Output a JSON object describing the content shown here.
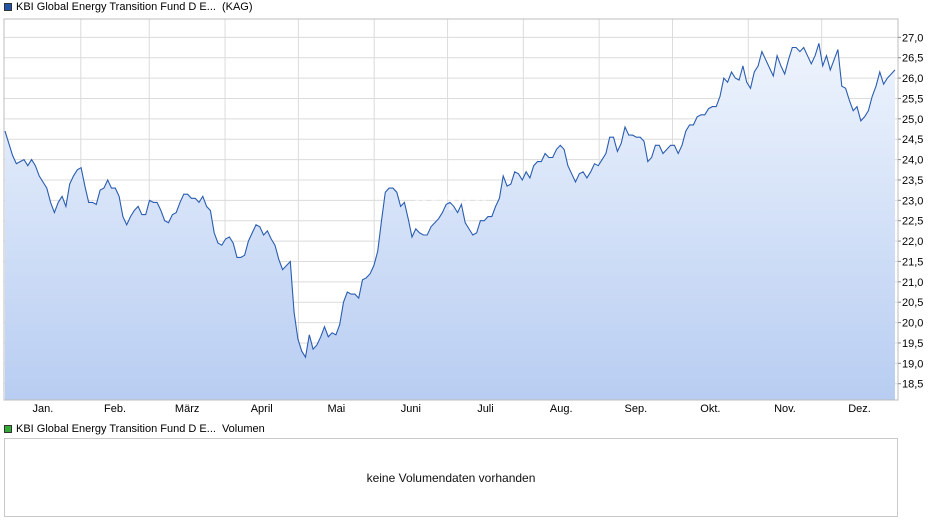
{
  "chart_data": {
    "type": "area",
    "x_tick_labels": [
      "Jan.",
      "Feb.",
      "März",
      "April",
      "Mai",
      "Juni",
      "Juli",
      "Aug.",
      "Sep.",
      "Okt.",
      "Nov.",
      "Dez."
    ],
    "y_tick_labels": [
      "18,5",
      "19,0",
      "19,5",
      "20,0",
      "20,5",
      "21,0",
      "21,5",
      "22,0",
      "22,5",
      "23,0",
      "23,5",
      "24,0",
      "24,5",
      "25,0",
      "25,5",
      "26,0",
      "26,5",
      "27,0"
    ],
    "ylim": [
      18.1,
      27.45
    ],
    "grid": true,
    "series": [
      {
        "name": "KBI Global Energy Transition Fund D E...",
        "values": [
          24.7,
          24.4,
          24.1,
          23.9,
          23.95,
          24.0,
          23.85,
          24.0,
          23.85,
          23.6,
          23.45,
          23.3,
          22.95,
          22.7,
          22.95,
          23.1,
          22.85,
          23.4,
          23.6,
          23.75,
          23.8,
          23.35,
          22.95,
          22.95,
          22.9,
          23.25,
          23.3,
          23.5,
          23.3,
          23.3,
          23.1,
          22.6,
          22.4,
          22.6,
          22.75,
          22.85,
          22.65,
          22.65,
          23.0,
          22.95,
          22.95,
          22.75,
          22.5,
          22.45,
          22.65,
          22.7,
          22.95,
          23.15,
          23.15,
          23.05,
          23.05,
          22.95,
          23.1,
          22.85,
          22.75,
          22.2,
          21.95,
          21.9,
          22.05,
          22.1,
          21.95,
          21.6,
          21.6,
          21.65,
          22.0,
          22.2,
          22.4,
          22.35,
          22.15,
          22.25,
          22.05,
          21.9,
          21.55,
          21.3,
          21.4,
          21.5,
          20.25,
          19.6,
          19.3,
          19.15,
          19.7,
          19.35,
          19.45,
          19.65,
          19.9,
          19.65,
          19.75,
          19.7,
          19.95,
          20.5,
          20.75,
          20.7,
          20.7,
          20.6,
          21.05,
          21.1,
          21.2,
          21.4,
          21.75,
          22.5,
          23.2,
          23.3,
          23.3,
          23.2,
          22.85,
          22.95,
          22.55,
          22.1,
          22.3,
          22.2,
          22.15,
          22.15,
          22.35,
          22.45,
          22.55,
          22.7,
          22.9,
          22.95,
          22.85,
          22.7,
          22.9,
          22.45,
          22.3,
          22.15,
          22.2,
          22.5,
          22.5,
          22.6,
          22.6,
          22.85,
          23.05,
          23.6,
          23.35,
          23.4,
          23.7,
          23.65,
          23.5,
          23.7,
          23.55,
          23.85,
          23.95,
          23.95,
          24.15,
          24.05,
          24.05,
          24.25,
          24.35,
          24.25,
          23.85,
          23.65,
          23.45,
          23.65,
          23.7,
          23.55,
          23.7,
          23.9,
          23.85,
          24.0,
          24.15,
          24.55,
          24.55,
          24.2,
          24.4,
          24.8,
          24.6,
          24.6,
          24.55,
          24.55,
          24.45,
          23.95,
          24.05,
          24.35,
          24.35,
          24.15,
          24.25,
          24.35,
          24.35,
          24.15,
          24.35,
          24.7,
          24.85,
          24.85,
          25.05,
          25.1,
          25.1,
          25.25,
          25.3,
          25.3,
          25.55,
          26.0,
          25.9,
          26.15,
          26.0,
          25.95,
          26.3,
          25.9,
          25.75,
          26.15,
          26.3,
          26.65,
          26.45,
          26.25,
          26.05,
          26.55,
          26.3,
          26.1,
          26.45,
          26.75,
          26.75,
          26.65,
          26.75,
          26.55,
          26.35,
          26.55,
          26.85,
          26.3,
          26.55,
          26.2,
          26.45,
          26.7,
          25.8,
          25.75,
          25.45,
          25.2,
          25.3,
          24.95,
          25.05,
          25.2,
          25.55,
          25.8,
          26.15,
          25.85,
          26.0,
          26.1,
          26.2
        ]
      }
    ]
  },
  "legends": {
    "price": {
      "name": "KBI Global Energy Transition Fund D E...",
      "suffix": "(KAG)",
      "color": "#2255aa"
    },
    "volume": {
      "name": "KBI Global Energy Transition Fund D E...",
      "suffix": "Volumen",
      "color": "#33aa33"
    }
  },
  "volume_message": "keine Volumendaten vorhanden",
  "watermark_text": "ARIVA",
  "colors": {
    "line": "#2a5db0",
    "area_top": "#eef4fd",
    "area_bottom": "#b8cdf2",
    "grid": "#dcdcdc"
  }
}
